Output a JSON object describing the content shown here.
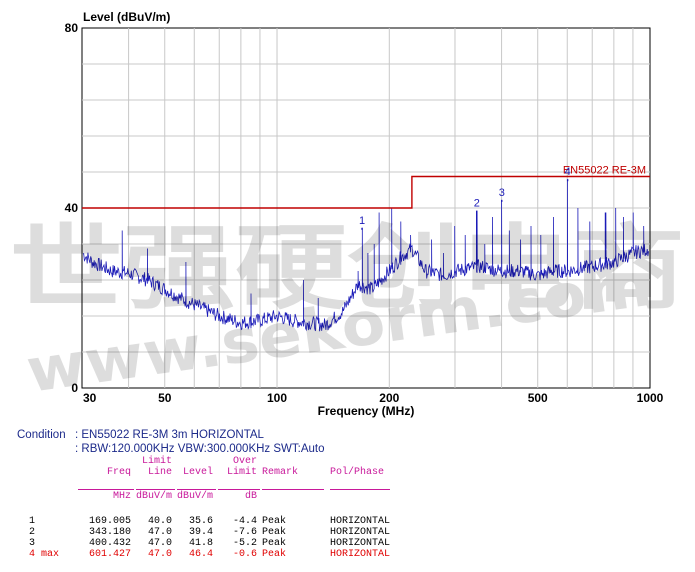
{
  "chart_data": {
    "type": "line",
    "ylabel": "Level (dBuV/m)",
    "xlabel": "Frequency (MHz)",
    "xscale": "log",
    "xlim": [
      30,
      1000
    ],
    "ylim": [
      0,
      80
    ],
    "ytick_labels": [
      "0",
      "40",
      "80"
    ],
    "xtick_labels": [
      "30",
      "50",
      "100",
      "200",
      "500",
      "1000"
    ],
    "limit_line": {
      "name": "EN55022 RE-3M",
      "points": [
        [
          30,
          40
        ],
        [
          230,
          40
        ],
        [
          230,
          47
        ],
        [
          1000,
          47
        ]
      ]
    },
    "markers": [
      {
        "label": "1",
        "freq": 169.005,
        "level": 35.6
      },
      {
        "label": "2",
        "freq": 343.18,
        "level": 39.4
      },
      {
        "label": "3",
        "freq": 400.432,
        "level": 41.8
      },
      {
        "label": "4",
        "freq": 601.427,
        "level": 46.4
      }
    ],
    "trace_envelope": [
      [
        30,
        30
      ],
      [
        32,
        28
      ],
      [
        36,
        26
      ],
      [
        40,
        25.5
      ],
      [
        45,
        24
      ],
      [
        50,
        22
      ],
      [
        55,
        20
      ],
      [
        60,
        18.5
      ],
      [
        70,
        16
      ],
      [
        80,
        14.5
      ],
      [
        90,
        15
      ],
      [
        100,
        16
      ],
      [
        110,
        15
      ],
      [
        120,
        14.5
      ],
      [
        135,
        14
      ],
      [
        150,
        17
      ],
      [
        165,
        23
      ],
      [
        180,
        22
      ],
      [
        200,
        26
      ],
      [
        215,
        29
      ],
      [
        230,
        31
      ],
      [
        250,
        26
      ],
      [
        280,
        25
      ],
      [
        300,
        26
      ],
      [
        350,
        27
      ],
      [
        400,
        26
      ],
      [
        450,
        26
      ],
      [
        500,
        25
      ],
      [
        550,
        26
      ],
      [
        600,
        26
      ],
      [
        700,
        27
      ],
      [
        800,
        28
      ],
      [
        900,
        30
      ],
      [
        1000,
        31
      ]
    ],
    "spikes": [
      [
        38.5,
        35
      ],
      [
        45,
        31
      ],
      [
        57,
        28
      ],
      [
        85,
        21
      ],
      [
        118,
        24
      ],
      [
        129,
        20
      ],
      [
        165,
        26
      ],
      [
        169.005,
        35.6
      ],
      [
        175,
        30
      ],
      [
        182,
        32
      ],
      [
        188,
        39
      ],
      [
        203,
        40
      ],
      [
        215,
        37
      ],
      [
        228,
        34
      ],
      [
        260,
        33
      ],
      [
        280,
        30
      ],
      [
        300,
        36
      ],
      [
        320,
        34
      ],
      [
        343.18,
        39.4
      ],
      [
        360,
        32
      ],
      [
        378,
        38
      ],
      [
        400.432,
        41.8
      ],
      [
        420,
        35
      ],
      [
        450,
        33
      ],
      [
        480,
        36
      ],
      [
        510,
        34
      ],
      [
        550,
        38
      ],
      [
        601.427,
        46.4
      ],
      [
        640,
        40
      ],
      [
        690,
        37
      ],
      [
        760,
        39
      ],
      [
        810,
        40
      ],
      [
        850,
        38
      ],
      [
        900,
        39
      ],
      [
        960,
        36
      ]
    ]
  },
  "condition": {
    "label": "Condition",
    "line1": ": EN55022 RE-3M 3m HORIZONTAL",
    "line2": ": RBW:120.000KHz VBW:300.000KHz SWT:Auto"
  },
  "table": {
    "headers": [
      {
        "top": "",
        "bottom": "Freq",
        "unit": "MHz"
      },
      {
        "top": "Limit",
        "bottom": "Line",
        "unit": "dBuV/m"
      },
      {
        "top": "",
        "bottom": "Level",
        "unit": "dBuV/m"
      },
      {
        "top": "Over",
        "bottom": "Limit",
        "unit": "dB"
      },
      {
        "top": "",
        "bottom": "Remark",
        "unit": ""
      },
      {
        "top": "",
        "bottom": "Pol/Phase",
        "unit": ""
      }
    ],
    "rows": [
      {
        "no": "1",
        "freq": "169.005",
        "limit": "40.0",
        "level": "35.6",
        "over": "-4.4",
        "remark": "Peak",
        "pol": "HORIZONTAL",
        "highlight": false
      },
      {
        "no": "2",
        "freq": "343.180",
        "limit": "47.0",
        "level": "39.4",
        "over": "-7.6",
        "remark": "Peak",
        "pol": "HORIZONTAL",
        "highlight": false
      },
      {
        "no": "3",
        "freq": "400.432",
        "limit": "47.0",
        "level": "41.8",
        "over": "-5.2",
        "remark": "Peak",
        "pol": "HORIZONTAL",
        "highlight": false
      },
      {
        "no": "4 max",
        "freq": "601.427",
        "limit": "47.0",
        "level": "46.4",
        "over": "-0.6",
        "remark": "Peak",
        "pol": "HORIZONTAL",
        "highlight": true
      }
    ]
  },
  "watermark": {
    "line1": "世强硬创电商",
    "line2": "www.sekorm.com"
  },
  "colors": {
    "trace": "#1b1bb8",
    "limit": "#c00000",
    "grid": "#c8c8c8",
    "header": "#c8189a",
    "condition": "#1c2a8a",
    "highlight": "#e00000"
  }
}
